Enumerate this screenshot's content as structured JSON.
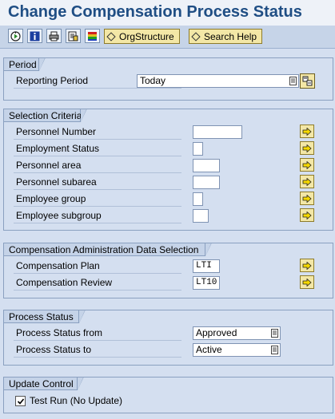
{
  "title": "Change Compensation Process Status",
  "toolbar": {
    "buttons": [
      "execute-icon",
      "info-icon",
      "print-icon",
      "variant-icon",
      "color-legend-icon"
    ],
    "org_structure_label": "OrgStructure",
    "search_help_label": "Search Help"
  },
  "period": {
    "header": "Period",
    "reporting_period_label": "Reporting Period",
    "reporting_period_value": "Today"
  },
  "selection": {
    "header": "Selection Criteria",
    "rows": [
      {
        "label": "Personnel Number",
        "value": ""
      },
      {
        "label": "Employment Status",
        "value": ""
      },
      {
        "label": "Personnel area",
        "value": ""
      },
      {
        "label": "Personnel subarea",
        "value": ""
      },
      {
        "label": "Employee group",
        "value": ""
      },
      {
        "label": "Employee subgroup",
        "value": ""
      }
    ]
  },
  "comp_admin": {
    "header": "Compensation Administration Data Selection",
    "rows": [
      {
        "label": "Compensation Plan",
        "value": "LTI"
      },
      {
        "label": "Compensation Review",
        "value": "LT10"
      }
    ]
  },
  "process_status": {
    "header": "Process Status",
    "rows": [
      {
        "label": "Process Status from",
        "value": "Approved"
      },
      {
        "label": "Process Status to",
        "value": "Active"
      }
    ]
  },
  "update_control": {
    "header": "Update Control",
    "test_run_label": "Test Run (No Update)",
    "test_run_checked": true
  },
  "colors": {
    "background": "#d4dff0",
    "title": "#1f4e84",
    "button_yellow": "#f3e7a6"
  }
}
